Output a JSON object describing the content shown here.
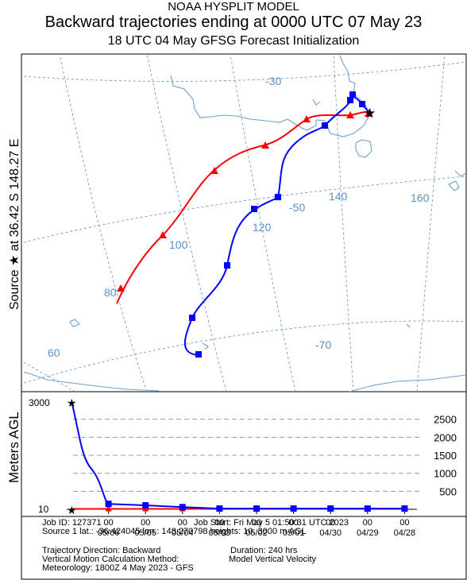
{
  "header": {
    "line1": "NOAA HYSPLIT MODEL",
    "line2": "Backward trajectories ending at 0000 UTC 07 May 23",
    "line3": "18 UTC 04 May     GFSG  Forecast Initialization"
  },
  "side_label": "Source ★  at    36.42 S  148.27 E",
  "map": {
    "lat_labels": [
      "-30",
      "-50",
      "-70"
    ],
    "lon_labels": [
      "60",
      "80",
      "100",
      "120",
      "140",
      "160"
    ],
    "colors": {
      "coast": "#6f9fd0",
      "grid": "#5b8fc8",
      "red": "#ff0000",
      "blue": "#0000ff"
    }
  },
  "profile": {
    "ylabel": "Meters AGL",
    "y_left_labels": [
      "3000",
      "10"
    ],
    "y_right_labels": [
      "2500",
      "2000",
      "1500",
      "1000",
      "500"
    ],
    "x_ticks": [
      {
        "hour": "00",
        "date": "05/06"
      },
      {
        "hour": "00",
        "date": "05/05"
      },
      {
        "hour": "00",
        "date": "05/04"
      },
      {
        "hour": "00",
        "date": "05/03"
      },
      {
        "hour": "00",
        "date": "05/02"
      },
      {
        "hour": "00",
        "date": "05/01"
      },
      {
        "hour": "00",
        "date": "04/30"
      },
      {
        "hour": "00",
        "date": "04/29"
      },
      {
        "hour": "00",
        "date": "04/28"
      }
    ]
  },
  "chart_data": {
    "type": "line",
    "title": "Backward trajectories ending at 0000 UTC 07 May 23",
    "ylabel": "Meters AGL",
    "ylim": [
      0,
      3000
    ],
    "x": [
      "05/07 00",
      "05/06 00",
      "05/05 00",
      "05/04 00",
      "05/03 00",
      "05/02 00",
      "05/01 00",
      "04/30 00",
      "04/29 00",
      "04/28 00"
    ],
    "series": [
      {
        "name": "10 m",
        "color": "#ff0000",
        "values": [
          10,
          10,
          10,
          10,
          10,
          10,
          10,
          10,
          10,
          10
        ]
      },
      {
        "name": "3000 m",
        "color": "#0000ff",
        "values": [
          3000,
          150,
          110,
          60,
          20,
          20,
          20,
          20,
          20,
          20
        ]
      }
    ]
  },
  "info": {
    "job_id": "Job ID: 127371",
    "job_start": "Job Start: Fri May  5 01:50:31 UTC 2023",
    "source": "Source 1 lat.: -36.424045  lon.: 148.270798  heights: 10, 3000 m AGL",
    "direction": "Trajectory Direction: Backward",
    "duration": "Duration: 240 hrs",
    "vertical_method": "Vertical Motion Calculation Method:",
    "vertical_value": "Model Vertical Velocity",
    "meteorology": "Meteorology: 1800Z 4 May 2023 - GFS"
  }
}
